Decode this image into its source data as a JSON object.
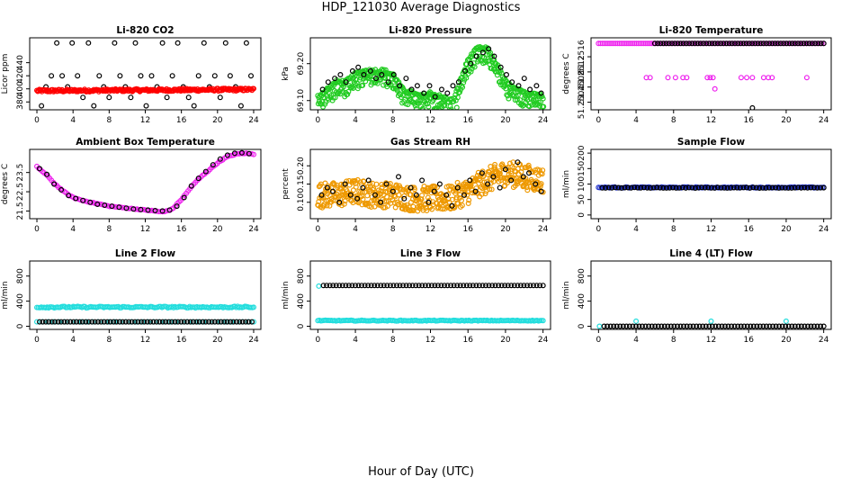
{
  "figure": {
    "title": "HDP_121030  Average Diagnostics",
    "xlabel": "Hour of Day (UTC)"
  },
  "chart_data": [
    {
      "type": "scatter",
      "title": "Li-820 CO2",
      "ylabel": "Licor ppm",
      "xlim": [
        -0.8,
        24.8
      ],
      "ylim": [
        368,
        478
      ],
      "xticks": [
        0,
        4,
        8,
        12,
        16,
        20,
        24
      ],
      "xtick_labels": [
        "0",
        "4",
        "8",
        "12",
        "16",
        "20",
        "24"
      ],
      "yticks": [
        380,
        400,
        420,
        440
      ],
      "ytick_labels": [
        "380",
        "400",
        "420",
        "440"
      ],
      "series": [
        {
          "name": "co2 raw black",
          "color": "#000000",
          "kind": "sparse",
          "x": [
            0.5,
            1.0,
            1.6,
            2.2,
            2.8,
            3.4,
            3.9,
            4.5,
            5.1,
            5.7,
            6.3,
            6.9,
            7.4,
            8.0,
            8.6,
            9.2,
            9.8,
            10.4,
            10.9,
            11.5,
            12.1,
            12.7,
            13.3,
            13.9,
            14.4,
            15.0,
            15.6,
            16.2,
            16.8,
            17.4,
            17.9,
            18.5,
            19.1,
            19.7,
            20.3,
            20.9,
            21.4,
            22.0,
            22.6,
            23.2,
            23.7
          ],
          "y": [
            374,
            403,
            420,
            470,
            420,
            403,
            470,
            420,
            387,
            470,
            374,
            420,
            403,
            387,
            470,
            420,
            403,
            387,
            470,
            420,
            374,
            420,
            403,
            470,
            387,
            420,
            470,
            403,
            387,
            374,
            420,
            470,
            403,
            420,
            387,
            470,
            420,
            403,
            374,
            470,
            420
          ]
        },
        {
          "name": "co2 raw red",
          "color": "#ff0000",
          "kind": "dense",
          "x": [
            0,
            24
          ],
          "y": [
            397,
            399
          ],
          "jitter": 2.0,
          "n": 260
        }
      ]
    },
    {
      "type": "scatter",
      "title": "Li-820 Pressure",
      "ylabel": "kPa",
      "xlim": [
        -0.8,
        24.8
      ],
      "ylim": [
        69.075,
        69.27
      ],
      "xticks": [
        0,
        4,
        8,
        12,
        16,
        20,
        24
      ],
      "xtick_labels": [
        "0",
        "4",
        "8",
        "12",
        "16",
        "20",
        "24"
      ],
      "yticks": [
        69.1,
        69.2
      ],
      "ytick_labels": [
        "69.10",
        "69.20"
      ],
      "series": [
        {
          "name": "pressure green",
          "color": "#22cc22",
          "kind": "dense",
          "x": [
            0,
            1,
            2,
            3,
            4,
            5,
            6,
            7,
            8,
            9,
            10,
            11,
            12,
            13,
            14,
            14.5,
            15,
            16,
            17,
            18,
            19,
            20,
            21,
            22,
            23,
            24
          ],
          "y": [
            69.11,
            69.13,
            69.15,
            69.15,
            69.17,
            69.18,
            69.18,
            69.18,
            69.17,
            69.13,
            69.12,
            69.11,
            69.12,
            69.11,
            69.1,
            69.1,
            69.14,
            69.21,
            69.24,
            69.24,
            69.2,
            69.15,
            69.13,
            69.12,
            69.12,
            69.11
          ],
          "jitter": 0.006,
          "n": 240,
          "band_offset": -0.04
        },
        {
          "name": "pressure black",
          "color": "#000000",
          "kind": "sparse",
          "x": [
            0.5,
            1.1,
            1.8,
            2.4,
            3.0,
            3.7,
            4.3,
            4.9,
            5.6,
            6.2,
            6.8,
            7.5,
            8.1,
            8.7,
            9.4,
            10.0,
            10.6,
            11.3,
            11.9,
            12.5,
            13.2,
            13.8,
            14.4,
            15.0,
            15.7,
            16.3,
            16.9,
            17.6,
            18.2,
            18.8,
            19.5,
            20.1,
            20.7,
            21.4,
            22.0,
            22.6,
            23.3,
            23.8
          ],
          "y": [
            69.13,
            69.15,
            69.16,
            69.17,
            69.15,
            69.18,
            69.19,
            69.17,
            69.18,
            69.16,
            69.17,
            69.15,
            69.17,
            69.14,
            69.16,
            69.13,
            69.14,
            69.12,
            69.14,
            69.11,
            69.13,
            69.12,
            69.14,
            69.15,
            69.18,
            69.2,
            69.22,
            69.23,
            69.24,
            69.22,
            69.19,
            69.17,
            69.15,
            69.14,
            69.16,
            69.13,
            69.14,
            69.12
          ]
        }
      ]
    },
    {
      "type": "scatter",
      "title": "Li-820 Temperature",
      "ylabel": "degrees C",
      "xlim": [
        -0.8,
        24.8
      ],
      "ylim": [
        51.2502,
        51.2521
      ],
      "xticks": [
        0,
        4,
        8,
        12,
        16,
        20,
        24
      ],
      "xtick_labels": [
        "0",
        "4",
        "8",
        "12",
        "16",
        "20",
        "24"
      ],
      "yticks": [
        51.2504,
        51.2508,
        51.2512,
        51.2516
      ],
      "ytick_labels": [
        "51.2504",
        "51.2508",
        "51.2512",
        "51.2516"
      ],
      "series": [
        {
          "name": "temp magenta top",
          "color": "#ee22ee",
          "kind": "dense",
          "x": [
            0,
            24
          ],
          "y": [
            51.25195,
            51.25195
          ],
          "jitter": 0.0,
          "n": 120
        },
        {
          "name": "temp black top",
          "color": "#000000",
          "kind": "dense",
          "x": [
            6,
            24
          ],
          "y": [
            51.25195,
            51.25195
          ],
          "jitter": 0.0,
          "n": 60
        },
        {
          "name": "temp magenta mid",
          "color": "#ee22ee",
          "kind": "sparse",
          "x": [
            5.1,
            5.5,
            7.4,
            8.2,
            9.0,
            9.4,
            11.6,
            11.9,
            12.2,
            15.2,
            15.8,
            16.4,
            17.6,
            18.1,
            18.5,
            22.2
          ],
          "y": [
            51.25105,
            51.25105,
            51.25105,
            51.25105,
            51.25105,
            51.25105,
            51.25105,
            51.25105,
            51.25105,
            51.25105,
            51.25105,
            51.25105,
            51.25105,
            51.25105,
            51.25105,
            51.25105
          ]
        },
        {
          "name": "temp magenta low",
          "color": "#ee22ee",
          "kind": "sparse",
          "x": [
            12.4
          ],
          "y": [
            51.25075
          ]
        },
        {
          "name": "temp black low",
          "color": "#000000",
          "kind": "sparse",
          "x": [
            16.4
          ],
          "y": [
            51.25025
          ]
        }
      ]
    },
    {
      "type": "scatter",
      "title": "Ambient Box Temperature",
      "ylabel": "degrees C",
      "xlim": [
        -0.8,
        24.8
      ],
      "ylim": [
        21.1,
        24.7
      ],
      "xticks": [
        0,
        4,
        8,
        12,
        16,
        20,
        24
      ],
      "xtick_labels": [
        "0",
        "4",
        "8",
        "12",
        "16",
        "20",
        "24"
      ],
      "yticks": [
        21.5,
        22.5,
        23.5
      ],
      "ytick_labels": [
        "21.5",
        "22.5",
        "23.5"
      ],
      "series": [
        {
          "name": "ambient magenta",
          "color": "#ee22ee",
          "kind": "dense",
          "x": [
            0,
            1,
            2,
            3,
            4,
            5,
            6,
            7,
            8,
            9,
            10,
            11,
            12,
            13,
            14,
            15,
            16,
            17,
            18,
            19,
            20,
            21,
            22,
            23,
            24
          ],
          "y": [
            23.8,
            23.4,
            22.9,
            22.5,
            22.2,
            22.05,
            21.95,
            21.85,
            21.75,
            21.7,
            21.65,
            21.6,
            21.55,
            21.5,
            21.45,
            21.6,
            22.1,
            22.7,
            23.2,
            23.6,
            24.0,
            24.3,
            24.45,
            24.5,
            24.45
          ],
          "jitter": 0.02,
          "n": 120
        },
        {
          "name": "ambient black",
          "color": "#000000",
          "kind": "sparse",
          "x": [
            0.3,
            1.1,
            1.9,
            2.7,
            3.5,
            4.3,
            5.1,
            5.9,
            6.7,
            7.5,
            8.3,
            9.1,
            9.9,
            10.7,
            11.5,
            12.3,
            13.1,
            13.9,
            14.7,
            15.5,
            16.3,
            17.1,
            17.9,
            18.7,
            19.5,
            20.3,
            21.1,
            21.9,
            22.7,
            23.5
          ],
          "y": [
            23.7,
            23.4,
            22.9,
            22.6,
            22.3,
            22.15,
            22.05,
            21.95,
            21.85,
            21.8,
            21.75,
            21.7,
            21.65,
            21.6,
            21.57,
            21.55,
            21.52,
            21.5,
            21.55,
            21.75,
            22.2,
            22.8,
            23.2,
            23.55,
            23.9,
            24.2,
            24.4,
            24.5,
            24.52,
            24.48
          ]
        }
      ]
    },
    {
      "type": "scatter",
      "title": "Gas Stream RH",
      "ylabel": "percent",
      "xlim": [
        -0.8,
        24.8
      ],
      "ylim": [
        0.055,
        0.245
      ],
      "xticks": [
        0,
        4,
        8,
        12,
        16,
        20,
        24
      ],
      "xtick_labels": [
        "0",
        "4",
        "8",
        "12",
        "16",
        "20",
        "24"
      ],
      "yticks": [
        0.1,
        0.15,
        0.2
      ],
      "ytick_labels": [
        "0.10",
        "0.15",
        "0.20"
      ],
      "series": [
        {
          "name": "rh orange",
          "color": "#ee9900",
          "kind": "dense",
          "x": [
            0,
            2,
            4,
            6,
            8,
            10,
            12,
            14,
            16,
            18,
            20,
            22,
            24
          ],
          "y": [
            0.12,
            0.12,
            0.13,
            0.12,
            0.12,
            0.11,
            0.11,
            0.11,
            0.13,
            0.16,
            0.18,
            0.17,
            0.16
          ],
          "jitter": 0.035,
          "n": 520
        },
        {
          "name": "rh black",
          "color": "#000000",
          "kind": "sparse",
          "x": [
            0.4,
            1.0,
            1.6,
            2.3,
            2.9,
            3.5,
            4.2,
            4.8,
            5.4,
            6.1,
            6.7,
            7.3,
            8.0,
            8.6,
            9.2,
            9.9,
            10.5,
            11.1,
            11.8,
            12.4,
            13.0,
            13.7,
            14.3,
            14.9,
            15.6,
            16.2,
            16.8,
            17.5,
            18.1,
            18.7,
            19.4,
            20.0,
            20.6,
            21.3,
            21.9,
            22.5,
            23.2,
            23.8
          ],
          "y": [
            0.12,
            0.14,
            0.13,
            0.1,
            0.15,
            0.12,
            0.11,
            0.14,
            0.16,
            0.12,
            0.1,
            0.15,
            0.13,
            0.17,
            0.11,
            0.14,
            0.12,
            0.16,
            0.1,
            0.13,
            0.15,
            0.12,
            0.09,
            0.14,
            0.12,
            0.16,
            0.13,
            0.18,
            0.15,
            0.17,
            0.14,
            0.19,
            0.16,
            0.21,
            0.17,
            0.18,
            0.15,
            0.13
          ]
        }
      ]
    },
    {
      "type": "scatter",
      "title": "Sample Flow",
      "ylabel": "ml/min",
      "xlim": [
        -0.8,
        24.8
      ],
      "ylim": [
        -12,
        212
      ],
      "xticks": [
        0,
        4,
        8,
        12,
        16,
        20,
        24
      ],
      "xtick_labels": [
        "0",
        "4",
        "8",
        "12",
        "16",
        "20",
        "24"
      ],
      "yticks": [
        0,
        50,
        100,
        150,
        200
      ],
      "ytick_labels": [
        "0",
        "50",
        "100",
        "150",
        "200"
      ],
      "series": [
        {
          "name": "sample blue",
          "color": "#2233cc",
          "kind": "dense",
          "x": [
            0,
            24
          ],
          "y": [
            89,
            89
          ],
          "jitter": 1.5,
          "n": 140
        },
        {
          "name": "sample black",
          "color": "#000000",
          "kind": "dense",
          "x": [
            0.4,
            24
          ],
          "y": [
            88,
            88
          ],
          "jitter": 1.0,
          "n": 70
        }
      ]
    },
    {
      "type": "scatter",
      "title": "Line 2 Flow",
      "ylabel": "ml/min",
      "xlim": [
        -0.8,
        24.8
      ],
      "ylim": [
        -50,
        1040
      ],
      "xticks": [
        0,
        4,
        8,
        12,
        16,
        20,
        24
      ],
      "xtick_labels": [
        "0",
        "4",
        "8",
        "12",
        "16",
        "20",
        "24"
      ],
      "yticks": [
        0,
        400,
        800
      ],
      "ytick_labels": [
        "0",
        "400",
        "800"
      ],
      "series": [
        {
          "name": "line2 cyan",
          "color": "#22dddd",
          "kind": "dense",
          "x": [
            0,
            24
          ],
          "y": [
            305,
            305
          ],
          "jitter": 12,
          "n": 150
        },
        {
          "name": "line2 cyan low",
          "color": "#22dddd",
          "kind": "dense",
          "x": [
            0,
            24
          ],
          "y": [
            70,
            70
          ],
          "jitter": 0,
          "n": 40
        },
        {
          "name": "line2 black",
          "color": "#000000",
          "kind": "dense",
          "x": [
            0.3,
            23.8
          ],
          "y": [
            70,
            70
          ],
          "jitter": 0,
          "n": 70
        }
      ]
    },
    {
      "type": "scatter",
      "title": "Line 3 Flow",
      "ylabel": "ml/min",
      "xlim": [
        -0.8,
        24.8
      ],
      "ylim": [
        -50,
        1040
      ],
      "xticks": [
        0,
        4,
        8,
        12,
        16,
        20,
        24
      ],
      "xtick_labels": [
        "0",
        "4",
        "8",
        "12",
        "16",
        "20",
        "24"
      ],
      "yticks": [
        0,
        400,
        800
      ],
      "ytick_labels": [
        "0",
        "400",
        "800"
      ],
      "series": [
        {
          "name": "line3 cyan high",
          "color": "#22dddd",
          "kind": "sparse",
          "x": [
            0.1
          ],
          "y": [
            640
          ]
        },
        {
          "name": "line3 black",
          "color": "#000000",
          "kind": "dense",
          "x": [
            0.6,
            24
          ],
          "y": [
            650,
            650
          ],
          "jitter": 0,
          "n": 70
        },
        {
          "name": "line3 cyan low",
          "color": "#22dddd",
          "kind": "dense",
          "x": [
            0,
            24
          ],
          "y": [
            90,
            90
          ],
          "jitter": 6,
          "n": 150
        }
      ]
    },
    {
      "type": "scatter",
      "title": "Line 4 (LT) Flow",
      "ylabel": "ml/min",
      "xlim": [
        -0.8,
        24.8
      ],
      "ylim": [
        -50,
        1040
      ],
      "xticks": [
        0,
        4,
        8,
        12,
        16,
        20,
        24
      ],
      "xtick_labels": [
        "0",
        "4",
        "8",
        "12",
        "16",
        "20",
        "24"
      ],
      "yticks": [
        0,
        400,
        800
      ],
      "ytick_labels": [
        "0",
        "400",
        "800"
      ],
      "series": [
        {
          "name": "line4 cyan",
          "color": "#22dddd",
          "kind": "sparse",
          "x": [
            0.1,
            4.0,
            12.0,
            20.0
          ],
          "y": [
            0,
            80,
            80,
            80
          ]
        },
        {
          "name": "line4 black",
          "color": "#000000",
          "kind": "dense",
          "x": [
            0.6,
            24
          ],
          "y": [
            0,
            0
          ],
          "jitter": 0,
          "n": 70
        }
      ]
    }
  ]
}
